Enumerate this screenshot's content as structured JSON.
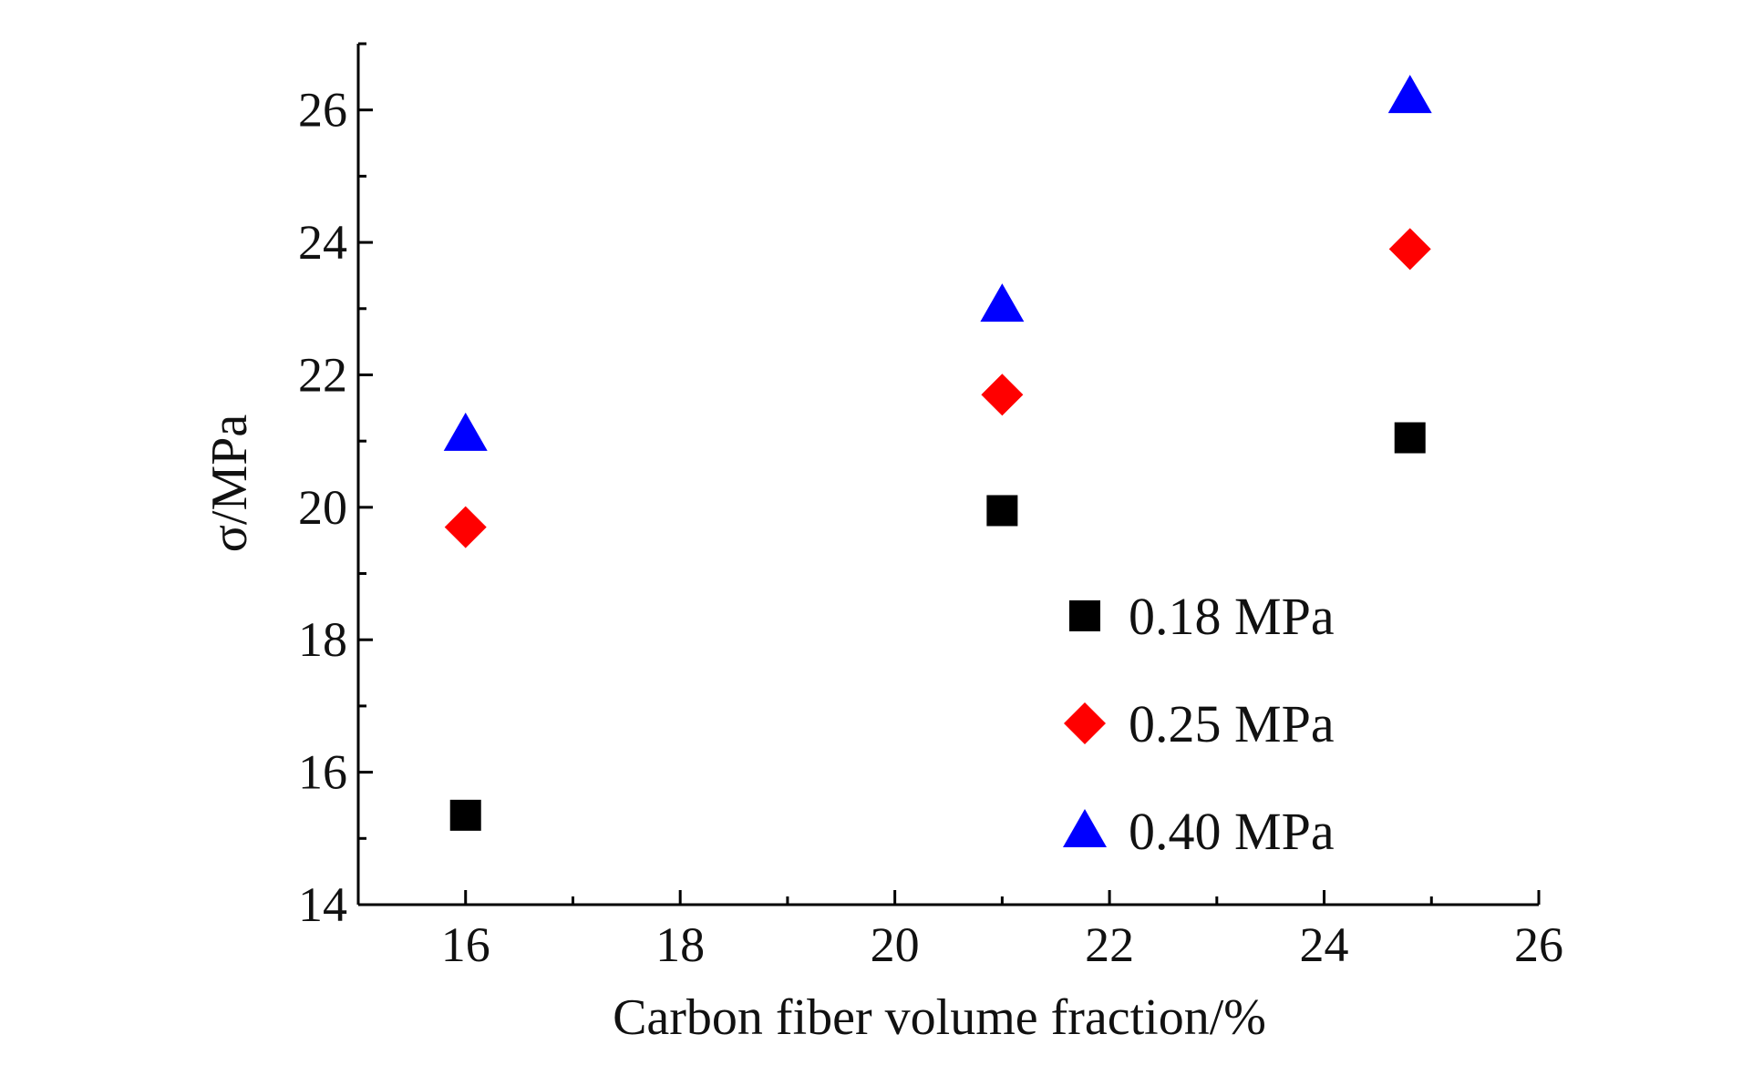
{
  "chart_data": {
    "type": "scatter",
    "title": "",
    "xlabel": "Carbon fiber volume fraction/%",
    "ylabel": "σ/MPa",
    "xlim": [
      15,
      26
    ],
    "ylim": [
      14,
      27
    ],
    "xticks": [
      16,
      18,
      20,
      22,
      24,
      26
    ],
    "yticks": [
      14,
      16,
      18,
      20,
      22,
      24,
      26
    ],
    "grid": false,
    "legend": "bottom-right inside",
    "series": [
      {
        "name": "0.18 MPa",
        "marker": "square",
        "color": "#000000",
        "x": [
          16,
          21,
          24.8
        ],
        "y": [
          15.35,
          19.95,
          21.05
        ]
      },
      {
        "name": "0.25 MPa",
        "marker": "diamond",
        "color": "#ff0000",
        "x": [
          16,
          21,
          24.8
        ],
        "y": [
          19.7,
          21.7,
          23.9
        ]
      },
      {
        "name": "0.40 MPa",
        "marker": "triangle",
        "color": "#0000ff",
        "x": [
          16,
          21,
          24.8
        ],
        "y": [
          21.1,
          23.05,
          26.2
        ]
      }
    ]
  }
}
